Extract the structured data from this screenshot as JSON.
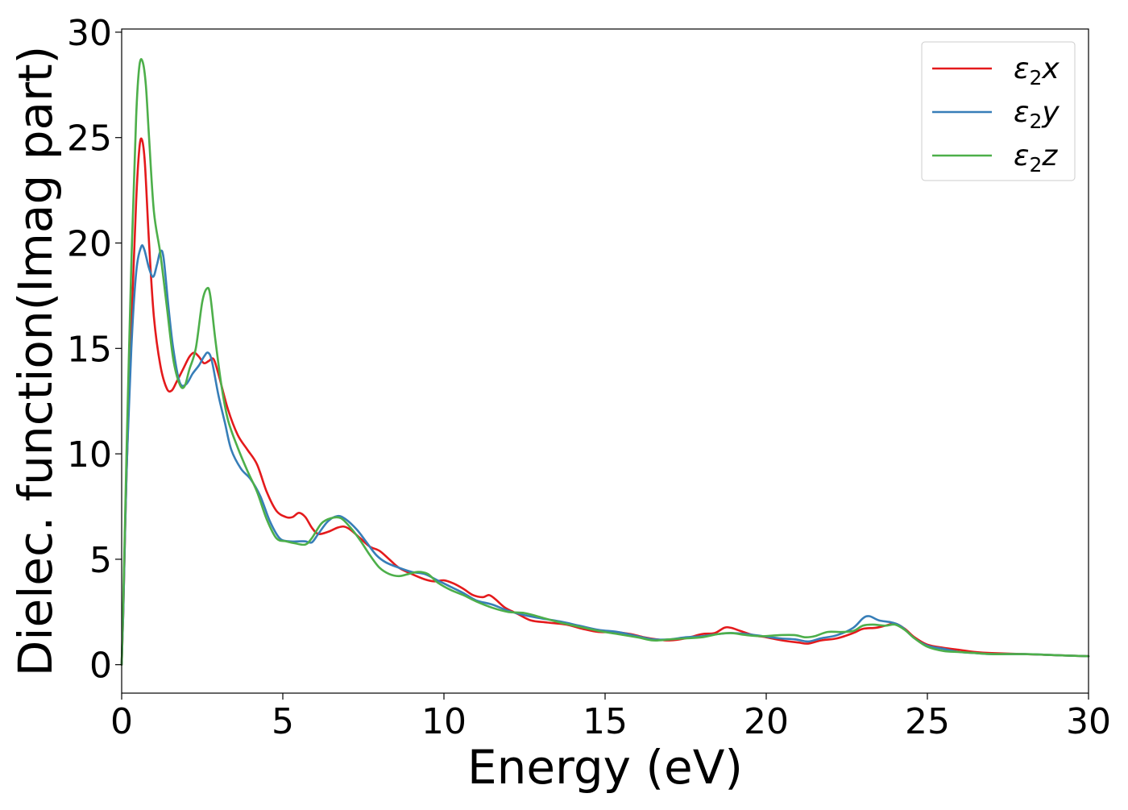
{
  "chart_data": {
    "type": "line",
    "title": "",
    "xlabel": "Energy (eV)",
    "ylabel": "Dielec. function(Imag part)",
    "xlim": [
      0,
      30
    ],
    "ylim": [
      -1.35,
      30.15
    ],
    "xticks": [
      0,
      5,
      10,
      15,
      20,
      25,
      30
    ],
    "yticks": [
      0,
      5,
      10,
      15,
      20,
      25,
      30
    ],
    "grid": false,
    "legend_position": "top-right",
    "series": [
      {
        "name": "ε₂x",
        "legend_base": "ε",
        "legend_sub": "2",
        "legend_suffix": "x",
        "color": "#e41a1c",
        "points": [
          [
            0,
            0
          ],
          [
            0.05,
            2.5
          ],
          [
            0.15,
            9
          ],
          [
            0.3,
            16
          ],
          [
            0.45,
            22
          ],
          [
            0.55,
            24.5
          ],
          [
            0.63,
            24.9
          ],
          [
            0.72,
            23.8
          ],
          [
            0.85,
            20
          ],
          [
            1.0,
            16.5
          ],
          [
            1.2,
            14.2
          ],
          [
            1.4,
            13.1
          ],
          [
            1.55,
            13.0
          ],
          [
            1.7,
            13.4
          ],
          [
            1.9,
            14
          ],
          [
            2.1,
            14.6
          ],
          [
            2.25,
            14.8
          ],
          [
            2.4,
            14.6
          ],
          [
            2.55,
            14.3
          ],
          [
            2.7,
            14.4
          ],
          [
            2.85,
            14.5
          ],
          [
            3.0,
            13.8
          ],
          [
            3.3,
            12.1
          ],
          [
            3.6,
            10.9
          ],
          [
            3.9,
            10.2
          ],
          [
            4.2,
            9.5
          ],
          [
            4.5,
            8.2
          ],
          [
            4.8,
            7.3
          ],
          [
            5.1,
            7.0
          ],
          [
            5.3,
            7.0
          ],
          [
            5.5,
            7.2
          ],
          [
            5.7,
            7.0
          ],
          [
            5.9,
            6.5
          ],
          [
            6.1,
            6.2
          ],
          [
            6.4,
            6.3
          ],
          [
            6.7,
            6.5
          ],
          [
            6.9,
            6.55
          ],
          [
            7.1,
            6.4
          ],
          [
            7.4,
            6.0
          ],
          [
            7.7,
            5.6
          ],
          [
            8.0,
            5.4
          ],
          [
            8.3,
            5.0
          ],
          [
            8.6,
            4.6
          ],
          [
            9.0,
            4.3
          ],
          [
            9.4,
            4.05
          ],
          [
            9.7,
            3.95
          ],
          [
            10.0,
            4.0
          ],
          [
            10.3,
            3.85
          ],
          [
            10.6,
            3.6
          ],
          [
            10.9,
            3.3
          ],
          [
            11.2,
            3.2
          ],
          [
            11.4,
            3.3
          ],
          [
            11.6,
            3.1
          ],
          [
            11.9,
            2.7
          ],
          [
            12.3,
            2.4
          ],
          [
            12.7,
            2.1
          ],
          [
            13.2,
            2.0
          ],
          [
            13.8,
            1.9
          ],
          [
            14.3,
            1.7
          ],
          [
            14.8,
            1.55
          ],
          [
            15.3,
            1.55
          ],
          [
            15.8,
            1.45
          ],
          [
            16.2,
            1.3
          ],
          [
            16.6,
            1.2
          ],
          [
            17.0,
            1.15
          ],
          [
            17.5,
            1.25
          ],
          [
            18.0,
            1.45
          ],
          [
            18.4,
            1.5
          ],
          [
            18.7,
            1.75
          ],
          [
            18.9,
            1.75
          ],
          [
            19.2,
            1.6
          ],
          [
            19.6,
            1.4
          ],
          [
            20.0,
            1.3
          ],
          [
            20.5,
            1.15
          ],
          [
            21.0,
            1.05
          ],
          [
            21.3,
            1.0
          ],
          [
            21.7,
            1.15
          ],
          [
            22.2,
            1.25
          ],
          [
            22.7,
            1.5
          ],
          [
            23.0,
            1.7
          ],
          [
            23.4,
            1.75
          ],
          [
            23.7,
            1.85
          ],
          [
            24.0,
            1.95
          ],
          [
            24.3,
            1.7
          ],
          [
            24.6,
            1.3
          ],
          [
            25.0,
            0.95
          ],
          [
            25.5,
            0.8
          ],
          [
            26.0,
            0.7
          ],
          [
            26.5,
            0.6
          ],
          [
            27.0,
            0.55
          ],
          [
            28.0,
            0.5
          ],
          [
            29.0,
            0.45
          ],
          [
            30.0,
            0.4
          ]
        ]
      },
      {
        "name": "ε₂y",
        "legend_base": "ε",
        "legend_sub": "2",
        "legend_suffix": "y",
        "color": "#377eb8",
        "points": [
          [
            0,
            0
          ],
          [
            0.05,
            2.5
          ],
          [
            0.15,
            9
          ],
          [
            0.3,
            15
          ],
          [
            0.45,
            18.6
          ],
          [
            0.6,
            19.8
          ],
          [
            0.7,
            19.7
          ],
          [
            0.85,
            18.8
          ],
          [
            0.98,
            18.4
          ],
          [
            1.1,
            19
          ],
          [
            1.2,
            19.6
          ],
          [
            1.3,
            19.3
          ],
          [
            1.45,
            17
          ],
          [
            1.6,
            15
          ],
          [
            1.8,
            13.4
          ],
          [
            2.0,
            13.3
          ],
          [
            2.2,
            13.8
          ],
          [
            2.4,
            14.2
          ],
          [
            2.55,
            14.6
          ],
          [
            2.68,
            14.8
          ],
          [
            2.8,
            14.4
          ],
          [
            3.0,
            12.8
          ],
          [
            3.2,
            11.5
          ],
          [
            3.4,
            10.2
          ],
          [
            3.7,
            9.3
          ],
          [
            4.0,
            8.8
          ],
          [
            4.3,
            8.0
          ],
          [
            4.6,
            6.8
          ],
          [
            4.9,
            6.0
          ],
          [
            5.2,
            5.85
          ],
          [
            5.5,
            5.85
          ],
          [
            5.7,
            5.85
          ],
          [
            5.9,
            5.8
          ],
          [
            6.1,
            6.2
          ],
          [
            6.4,
            6.8
          ],
          [
            6.7,
            7.05
          ],
          [
            6.95,
            6.9
          ],
          [
            7.3,
            6.4
          ],
          [
            7.6,
            5.8
          ],
          [
            7.9,
            5.2
          ],
          [
            8.2,
            4.85
          ],
          [
            8.6,
            4.6
          ],
          [
            9.0,
            4.4
          ],
          [
            9.4,
            4.3
          ],
          [
            9.8,
            4.0
          ],
          [
            10.2,
            3.7
          ],
          [
            10.6,
            3.4
          ],
          [
            11.0,
            3.05
          ],
          [
            11.5,
            2.85
          ],
          [
            12.0,
            2.55
          ],
          [
            12.5,
            2.35
          ],
          [
            13.0,
            2.2
          ],
          [
            13.6,
            2.05
          ],
          [
            14.2,
            1.85
          ],
          [
            14.8,
            1.65
          ],
          [
            15.4,
            1.55
          ],
          [
            16.0,
            1.35
          ],
          [
            16.5,
            1.2
          ],
          [
            17.0,
            1.2
          ],
          [
            17.5,
            1.3
          ],
          [
            18.0,
            1.35
          ],
          [
            18.5,
            1.45
          ],
          [
            18.9,
            1.5
          ],
          [
            19.4,
            1.45
          ],
          [
            19.9,
            1.35
          ],
          [
            20.4,
            1.25
          ],
          [
            20.9,
            1.2
          ],
          [
            21.3,
            1.1
          ],
          [
            21.7,
            1.25
          ],
          [
            22.2,
            1.4
          ],
          [
            22.7,
            1.75
          ],
          [
            23.0,
            2.2
          ],
          [
            23.2,
            2.3
          ],
          [
            23.5,
            2.1
          ],
          [
            23.9,
            2.0
          ],
          [
            24.2,
            1.8
          ],
          [
            24.6,
            1.25
          ],
          [
            25.0,
            0.9
          ],
          [
            25.5,
            0.75
          ],
          [
            26.0,
            0.6
          ],
          [
            26.5,
            0.55
          ],
          [
            27.0,
            0.5
          ],
          [
            28.0,
            0.5
          ],
          [
            29.0,
            0.45
          ],
          [
            30.0,
            0.4
          ]
        ]
      },
      {
        "name": "ε₂z",
        "legend_base": "ε",
        "legend_sub": "2",
        "legend_suffix": "z",
        "color": "#4daf4a",
        "points": [
          [
            0,
            0
          ],
          [
            0.05,
            3
          ],
          [
            0.15,
            10
          ],
          [
            0.3,
            19
          ],
          [
            0.45,
            26
          ],
          [
            0.55,
            28.4
          ],
          [
            0.65,
            28.6
          ],
          [
            0.75,
            27.5
          ],
          [
            0.85,
            25
          ],
          [
            1.0,
            21.5
          ],
          [
            1.2,
            19.5
          ],
          [
            1.4,
            17
          ],
          [
            1.6,
            14.5
          ],
          [
            1.8,
            13.3
          ],
          [
            1.95,
            13.2
          ],
          [
            2.1,
            14
          ],
          [
            2.3,
            15
          ],
          [
            2.5,
            17.2
          ],
          [
            2.65,
            17.85
          ],
          [
            2.75,
            17.5
          ],
          [
            2.9,
            15.5
          ],
          [
            3.1,
            13.2
          ],
          [
            3.3,
            11.6
          ],
          [
            3.6,
            10.3
          ],
          [
            3.9,
            9.2
          ],
          [
            4.2,
            8.2
          ],
          [
            4.5,
            6.9
          ],
          [
            4.8,
            6.0
          ],
          [
            5.1,
            5.85
          ],
          [
            5.4,
            5.75
          ],
          [
            5.7,
            5.7
          ],
          [
            5.9,
            6.0
          ],
          [
            6.2,
            6.7
          ],
          [
            6.5,
            6.95
          ],
          [
            6.8,
            6.95
          ],
          [
            7.1,
            6.5
          ],
          [
            7.4,
            5.9
          ],
          [
            7.7,
            5.2
          ],
          [
            8.0,
            4.6
          ],
          [
            8.3,
            4.3
          ],
          [
            8.6,
            4.2
          ],
          [
            8.9,
            4.3
          ],
          [
            9.2,
            4.4
          ],
          [
            9.5,
            4.3
          ],
          [
            9.8,
            3.9
          ],
          [
            10.2,
            3.55
          ],
          [
            10.6,
            3.3
          ],
          [
            11.0,
            3.0
          ],
          [
            11.5,
            2.7
          ],
          [
            12.0,
            2.5
          ],
          [
            12.5,
            2.45
          ],
          [
            13.0,
            2.25
          ],
          [
            13.6,
            2.0
          ],
          [
            14.2,
            1.8
          ],
          [
            14.8,
            1.6
          ],
          [
            15.4,
            1.45
          ],
          [
            16.0,
            1.3
          ],
          [
            16.5,
            1.15
          ],
          [
            17.0,
            1.2
          ],
          [
            17.5,
            1.25
          ],
          [
            18.0,
            1.3
          ],
          [
            18.5,
            1.45
          ],
          [
            18.9,
            1.5
          ],
          [
            19.4,
            1.4
          ],
          [
            19.9,
            1.35
          ],
          [
            20.4,
            1.4
          ],
          [
            20.9,
            1.4
          ],
          [
            21.2,
            1.3
          ],
          [
            21.5,
            1.35
          ],
          [
            21.9,
            1.55
          ],
          [
            22.3,
            1.55
          ],
          [
            22.7,
            1.6
          ],
          [
            23.0,
            1.85
          ],
          [
            23.3,
            1.9
          ],
          [
            23.7,
            1.85
          ],
          [
            24.0,
            1.9
          ],
          [
            24.3,
            1.65
          ],
          [
            24.6,
            1.25
          ],
          [
            25.0,
            0.85
          ],
          [
            25.5,
            0.65
          ],
          [
            26.0,
            0.6
          ],
          [
            26.5,
            0.55
          ],
          [
            27.0,
            0.5
          ],
          [
            28.0,
            0.5
          ],
          [
            29.0,
            0.45
          ],
          [
            30.0,
            0.4
          ]
        ]
      }
    ]
  }
}
